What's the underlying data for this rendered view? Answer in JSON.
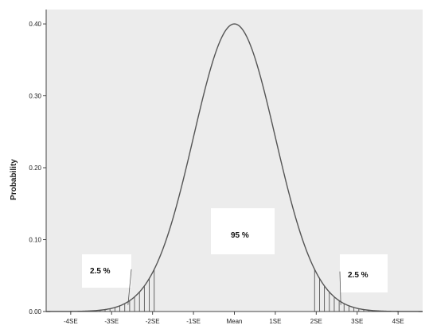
{
  "chart_data": {
    "type": "line",
    "title": "",
    "xlabel": "",
    "ylabel": "Probability",
    "x_range_se": [
      -4.6,
      4.6
    ],
    "ylim": [
      0,
      0.42
    ],
    "y_ticks": [
      0,
      0.1,
      0.2,
      0.3,
      0.4
    ],
    "y_tick_labels": [
      "0.00",
      "0.10",
      "0.20",
      "0.30",
      "0.40"
    ],
    "x_ticks_se": [
      -4,
      -3,
      -2,
      -1,
      0,
      1,
      2,
      3,
      4
    ],
    "x_tick_labels": [
      "-4SE",
      "-3SE",
      "-2SE",
      "-1SE",
      "Mean",
      "1SE",
      "2SE",
      "3SE",
      "4SE"
    ],
    "grid": false,
    "series": [
      {
        "distribution": "normal",
        "mean": 0,
        "sd": 1,
        "peak": 0.4
      }
    ],
    "shaded_regions": [
      {
        "from_se": -4.6,
        "to_se": -1.96,
        "label": "2.5 %",
        "hatch": "vertical"
      },
      {
        "from_se": 1.96,
        "to_se": 4.6,
        "label": "2.5 %",
        "hatch": "vertical"
      }
    ],
    "annotations": [
      {
        "text": "2.5 %",
        "side": "left",
        "points_to_se": -2.6
      },
      {
        "text": "95 %",
        "side": "center"
      },
      {
        "text": "2.5 %",
        "side": "right",
        "points_to_se": 2.6
      }
    ],
    "colors": {
      "plot_background": "#ececec",
      "curve": "#555555",
      "axis": "#444444",
      "label_box": "#ffffff"
    }
  }
}
